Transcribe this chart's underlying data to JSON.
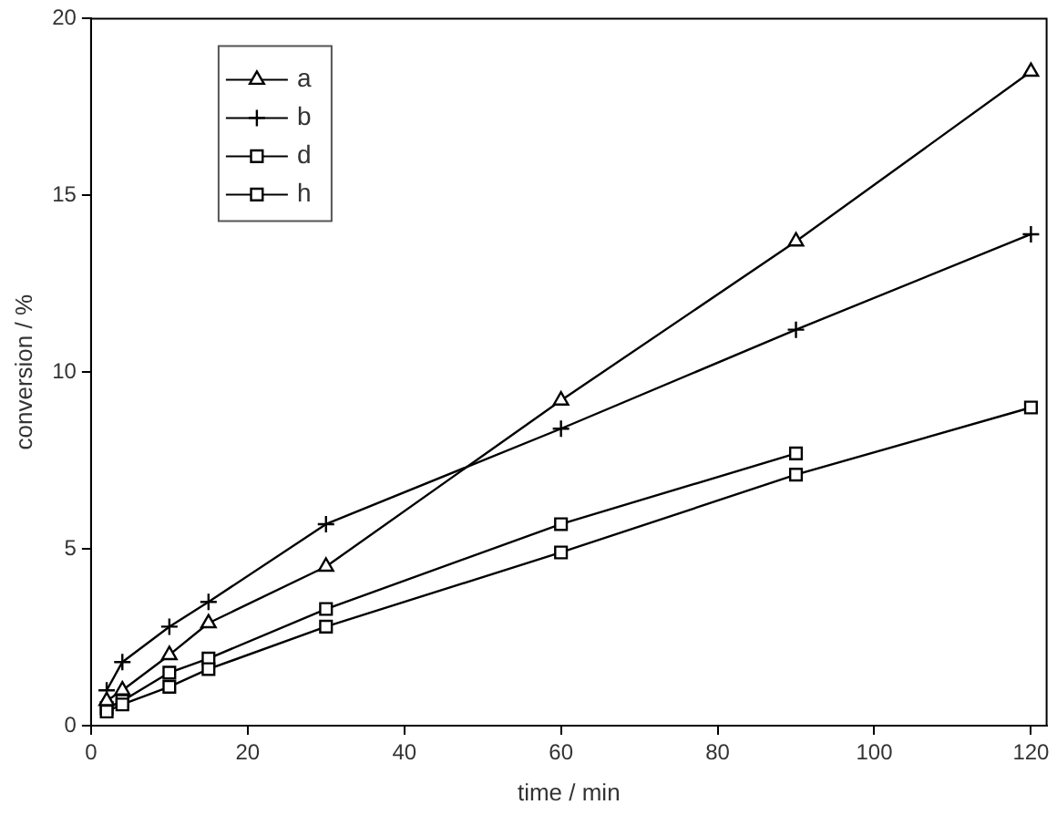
{
  "chart_data": {
    "type": "line",
    "xlabel": "time / min",
    "ylabel": "conversion / %",
    "xlim": [
      0,
      122
    ],
    "xticks": [
      0,
      20,
      40,
      60,
      80,
      100,
      120
    ],
    "ylim": [
      0,
      20
    ],
    "yticks": [
      0,
      5,
      10,
      15,
      20
    ],
    "grid": false,
    "legend": "top left",
    "line_style": "solid",
    "series": [
      {
        "name": "a",
        "color": "#000000",
        "marker": "triangle",
        "x": [
          2,
          4,
          10,
          15,
          30,
          60,
          90,
          120
        ],
        "values": [
          0.7,
          1.0,
          2.0,
          2.9,
          4.5,
          9.2,
          13.7,
          18.5
        ]
      },
      {
        "name": "b",
        "color": "#000000",
        "marker": "cross",
        "x": [
          2,
          4,
          10,
          15,
          30,
          60,
          90,
          120
        ],
        "values": [
          1.0,
          1.8,
          2.8,
          3.5,
          5.7,
          8.4,
          11.2,
          13.9
        ]
      },
      {
        "name": "d",
        "color": "#000000",
        "marker": "square",
        "x": [
          2,
          4,
          10,
          15,
          30,
          60,
          90,
          120
        ],
        "values": [
          0.4,
          0.6,
          1.1,
          1.6,
          2.8,
          4.9,
          7.1,
          9.0
        ]
      },
      {
        "name": "h",
        "color": "#000000",
        "marker": "square",
        "x": [
          2,
          4,
          10,
          15,
          30,
          60,
          90
        ],
        "values": [
          0.5,
          0.7,
          1.5,
          1.9,
          3.3,
          5.7,
          7.7
        ]
      }
    ]
  }
}
